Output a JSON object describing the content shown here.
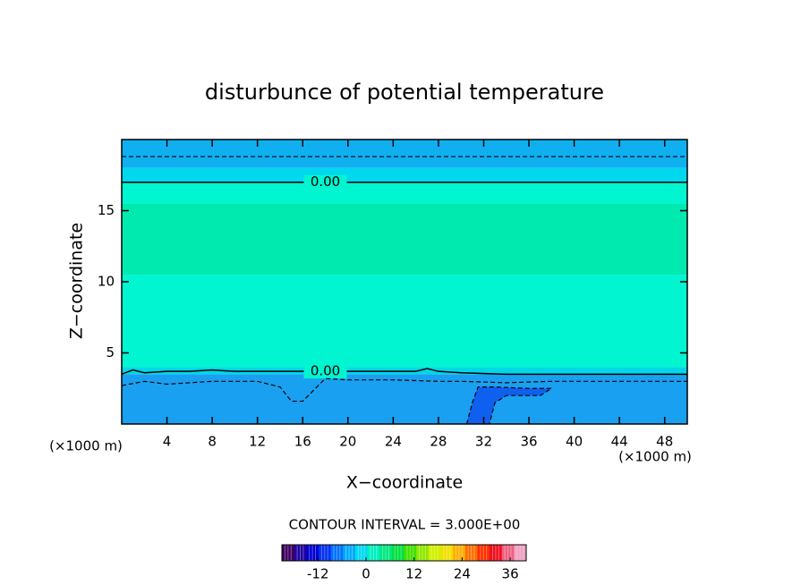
{
  "chart_data": {
    "type": "contour",
    "title": "disturbunce of potential temperature",
    "xlabel": "X−coordinate",
    "ylabel": "Z−coordinate",
    "xunit": "(×1000 m)",
    "yunit": "(×1000 m)",
    "xlim": [
      0,
      50
    ],
    "ylim": [
      0,
      20
    ],
    "xticks": [
      4,
      8,
      12,
      16,
      20,
      24,
      28,
      32,
      36,
      40,
      44,
      48
    ],
    "yticks": [
      5,
      10,
      15
    ],
    "layers": [
      {
        "z": [
          0,
          3.5
        ],
        "color": "#1aa0f0"
      },
      {
        "z": [
          3.5,
          4
        ],
        "color": "#00d8e8"
      },
      {
        "z": [
          4,
          10.5
        ],
        "color": "#00f5d0"
      },
      {
        "z": [
          10.5,
          15.5
        ],
        "color": "#00eab0"
      },
      {
        "z": [
          15.5,
          17
        ],
        "color": "#00f5d0"
      },
      {
        "z": [
          17,
          18
        ],
        "color": "#00d8f0"
      },
      {
        "z": [
          18,
          20
        ],
        "color": "#10b0f0"
      }
    ],
    "patch": {
      "x": [
        30.5,
        31,
        31.5,
        33,
        36,
        38,
        37,
        34,
        33,
        32.5
      ],
      "y": [
        0,
        1.5,
        2.6,
        2.6,
        2.5,
        2.5,
        2.0,
        2.0,
        1.5,
        0
      ],
      "color": "#1060f0"
    },
    "contours": [
      {
        "level": 0,
        "label": "0.00",
        "dashed": false,
        "x": [
          0,
          50
        ],
        "y": [
          17,
          17
        ]
      },
      {
        "level": 0,
        "label": "0.00",
        "dashed": false,
        "x": [
          0,
          1,
          2,
          4,
          6,
          8,
          10,
          14,
          18,
          22,
          26,
          27,
          28,
          30,
          34,
          38,
          42,
          46,
          50
        ],
        "y": [
          3.5,
          3.8,
          3.6,
          3.7,
          3.7,
          3.8,
          3.7,
          3.7,
          3.7,
          3.7,
          3.7,
          3.9,
          3.7,
          3.6,
          3.5,
          3.5,
          3.5,
          3.5,
          3.5
        ]
      },
      {
        "level": -3,
        "dashed": true,
        "x": [
          0,
          50
        ],
        "y": [
          18.8,
          18.8
        ]
      },
      {
        "level": -3,
        "dashed": true,
        "x": [
          0,
          2,
          4,
          8,
          12,
          14,
          15,
          16,
          17,
          18,
          20,
          24,
          28,
          30,
          34,
          38,
          40,
          42,
          46,
          50
        ],
        "y": [
          2.7,
          3,
          2.8,
          3,
          3,
          2.6,
          1.6,
          1.6,
          2.4,
          3.2,
          3.1,
          3.1,
          3.0,
          3.0,
          2.9,
          3.0,
          3.0,
          3.0,
          3.0,
          3.0
        ]
      },
      {
        "level": -6,
        "dashed": true,
        "x": [
          30.5,
          31,
          31.5,
          33,
          36,
          38,
          37,
          34,
          33,
          32.5
        ],
        "y": [
          0,
          1.5,
          2.6,
          2.6,
          2.5,
          2.5,
          2.0,
          2.0,
          1.5,
          0
        ]
      }
    ],
    "contour_interval_text": "CONTOUR INTERVAL = 3.000E+00",
    "colorbar": {
      "lim": [
        -21,
        40
      ],
      "ticks": [
        -12,
        0,
        12,
        24,
        36
      ],
      "colors": [
        "#400060",
        "#2000a0",
        "#0000d0",
        "#0030f0",
        "#0070ff",
        "#00a8ff",
        "#00d8f0",
        "#00f0c0",
        "#00e880",
        "#00e040",
        "#40e000",
        "#90e800",
        "#d0f000",
        "#f0e000",
        "#ffb000",
        "#ff7000",
        "#ff3000",
        "#f01020",
        "#f06080",
        "#f0a0c0"
      ]
    }
  }
}
